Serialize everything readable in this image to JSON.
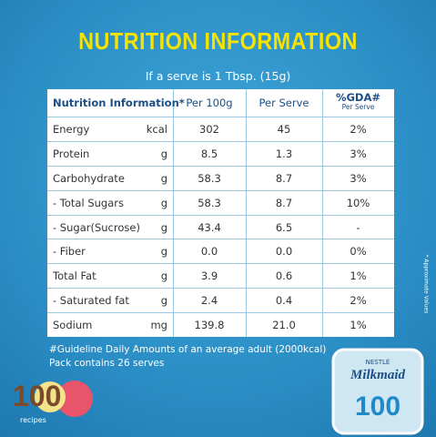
{
  "header": {
    "title": "NUTRITION INFORMATION",
    "subtitle": "If a serve is 1 Tbsp. (15g)"
  },
  "table": {
    "columns": [
      "Nutrition Information*",
      "Per 100g",
      "Per Serve",
      "%GDA#",
      "Per Serve"
    ],
    "rows": [
      [
        "Energy",
        "kcal",
        "302",
        "45",
        "2%"
      ],
      [
        "Protein",
        "g",
        "8.5",
        "1.3",
        "3%"
      ],
      [
        "Carbohydrate",
        "g",
        "58.3",
        "8.7",
        "3%"
      ],
      [
        "- Total Sugars",
        "g",
        "58.3",
        "8.7",
        "10%"
      ],
      [
        "- Sugar(Sucrose)",
        "g",
        "43.4",
        "6.5",
        "-"
      ],
      [
        "- Fiber",
        "g",
        "0.0",
        "0.0",
        "0%"
      ],
      [
        "Total Fat",
        "g",
        "3.9",
        "0.6",
        "1%"
      ],
      [
        "- Saturated fat",
        "g",
        "2.4",
        "0.4",
        "2%"
      ],
      [
        "Sodium",
        "mg",
        "139.8",
        "21.0",
        "1%"
      ]
    ]
  },
  "footnotes": [
    "#Guideline Daily Amounts of an average adult (2000kcal)",
    "Pack contains 26 serves"
  ],
  "side_note": "* Approximate Values",
  "logo": {
    "number": "100",
    "caption": "recipes"
  },
  "can": {
    "brand": "NESTLÉ",
    "product": "Milkmaid",
    "number": "100"
  }
}
